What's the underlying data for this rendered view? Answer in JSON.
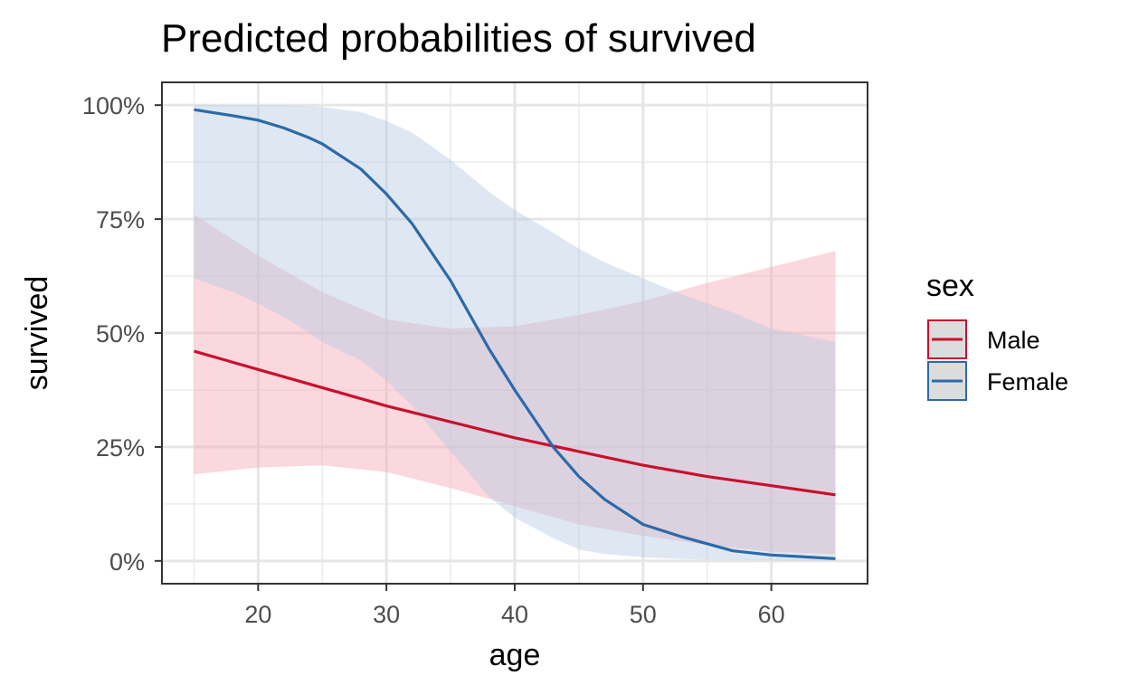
{
  "chart_data": {
    "type": "line",
    "title": "Predicted probabilities of survived",
    "xlabel": "age",
    "ylabel": "survived",
    "xlim": [
      12.5,
      67.5
    ],
    "ylim": [
      -0.05,
      1.05
    ],
    "x_ticks": [
      20,
      30,
      40,
      50,
      60
    ],
    "y_ticks": [
      0,
      0.25,
      0.5,
      0.75,
      1.0
    ],
    "y_tick_labels": [
      "0%",
      "25%",
      "50%",
      "75%",
      "100%"
    ],
    "grid": true,
    "legend": {
      "title": "sex",
      "position": "right"
    },
    "series": [
      {
        "name": "Male",
        "color": "#c8102e",
        "fill": "#f4a9b3",
        "x": [
          15,
          20,
          25,
          30,
          35,
          40,
          45,
          50,
          55,
          60,
          65
        ],
        "y": [
          0.46,
          0.42,
          0.38,
          0.34,
          0.305,
          0.27,
          0.24,
          0.21,
          0.185,
          0.165,
          0.145
        ],
        "lower": [
          0.19,
          0.205,
          0.21,
          0.195,
          0.16,
          0.12,
          0.08,
          0.055,
          0.035,
          0.02,
          0.015
        ],
        "upper": [
          0.76,
          0.67,
          0.59,
          0.53,
          0.51,
          0.515,
          0.54,
          0.57,
          0.61,
          0.645,
          0.68
        ]
      },
      {
        "name": "Female",
        "color": "#2c6aa8",
        "fill": "#b9cce3",
        "x": [
          15,
          18,
          20,
          22,
          24,
          25,
          28,
          30,
          32,
          35,
          38,
          40,
          43,
          45,
          47,
          50,
          53,
          57,
          60,
          65
        ],
        "y": [
          0.99,
          0.977,
          0.967,
          0.95,
          0.928,
          0.915,
          0.86,
          0.805,
          0.74,
          0.615,
          0.465,
          0.375,
          0.25,
          0.185,
          0.135,
          0.08,
          0.053,
          0.022,
          0.013,
          0.005
        ],
        "lower": [
          0.62,
          0.59,
          0.565,
          0.535,
          0.5,
          0.48,
          0.44,
          0.395,
          0.34,
          0.24,
          0.14,
          0.095,
          0.05,
          0.025,
          0.015,
          0.008,
          0.004,
          0.002,
          0.001,
          0.0
        ],
        "upper": [
          1.0,
          1.0,
          1.0,
          1.0,
          0.998,
          0.996,
          0.985,
          0.965,
          0.94,
          0.88,
          0.81,
          0.77,
          0.72,
          0.685,
          0.655,
          0.62,
          0.585,
          0.545,
          0.51,
          0.48
        ]
      }
    ]
  }
}
